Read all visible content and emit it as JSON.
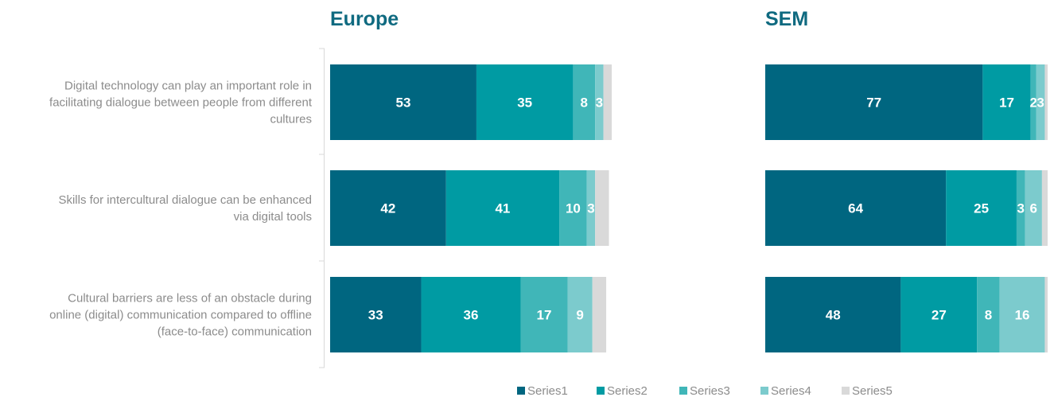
{
  "chart_data": [
    {
      "type": "bar",
      "orientation": "horizontal",
      "stacked": true,
      "title": "Europe",
      "categories": [
        "Digital technology can play an important role in facilitating dialogue between people from different cultures",
        "Skills for intercultural dialogue can be enhanced via digital tools",
        "Cultural barriers are less of an obstacle during online (digital) communication compared to offline (face-to-face) communication"
      ],
      "series": [
        {
          "name": "Series1",
          "values": [
            53,
            42,
            33
          ]
        },
        {
          "name": "Series2",
          "values": [
            35,
            41,
            36
          ]
        },
        {
          "name": "Series3",
          "values": [
            8,
            10,
            17
          ]
        },
        {
          "name": "Series4",
          "values": [
            3,
            3,
            9
          ]
        },
        {
          "name": "Series5",
          "values": [
            3,
            5,
            5
          ]
        }
      ],
      "xlim": [
        0,
        102
      ]
    },
    {
      "type": "bar",
      "orientation": "horizontal",
      "stacked": true,
      "title": "SEM",
      "categories": [
        "Digital technology can play an important role in facilitating dialogue between people from different cultures",
        "Skills for intercultural dialogue can be enhanced via digital tools",
        "Cultural barriers are less of an obstacle during online (digital) communication compared to offline (face-to-face) communication"
      ],
      "series": [
        {
          "name": "Series1",
          "values": [
            77,
            64,
            48
          ]
        },
        {
          "name": "Series2",
          "values": [
            17,
            25,
            27
          ]
        },
        {
          "name": "Series3",
          "values": [
            2,
            3,
            8
          ]
        },
        {
          "name": "Series4",
          "values": [
            3,
            6,
            16
          ]
        },
        {
          "name": "Series5",
          "values": [
            1,
            2,
            1
          ]
        }
      ],
      "xlim": [
        0,
        100
      ]
    }
  ],
  "category_labels": [
    [
      "Digital technology can play an important role in",
      "facilitating dialogue between people from different",
      "cultures"
    ],
    [
      "Skills for intercultural dialogue can be enhanced",
      "via digital tools"
    ],
    [
      "Cultural barriers are less of an obstacle during",
      "online (digital) communication compared to offline",
      "(face-to-face) communication"
    ]
  ],
  "colors": [
    "#006680",
    "#009ba3",
    "#40b6b8",
    "#7ccbcd",
    "#d9d9d9"
  ],
  "title_color": "#0f6a80",
  "legend": {
    "position": "bottom",
    "items": [
      "Series1",
      "Series2",
      "Series3",
      "Series4",
      "Series5"
    ]
  }
}
